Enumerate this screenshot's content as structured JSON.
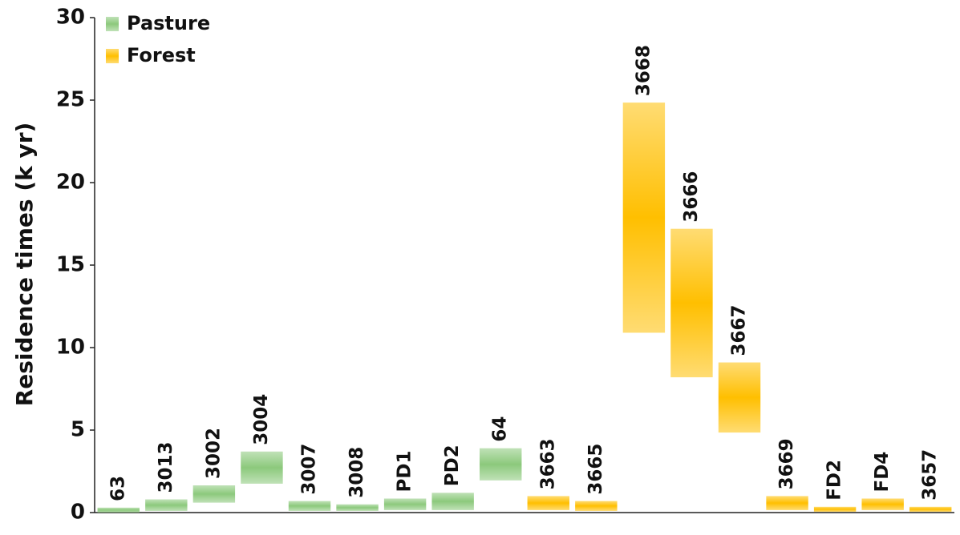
{
  "chart_data": {
    "type": "range-bar",
    "y_label": "Residence times (k yr)",
    "categories": [
      "63",
      "3013",
      "3002",
      "3004",
      "3007",
      "3008",
      "PD1",
      "PD2",
      "64",
      "3663",
      "3665",
      "3668",
      "3666",
      "3667",
      "3669",
      "FD2",
      "FD4",
      "3657"
    ],
    "series": [
      {
        "name": "Pasture",
        "color": "#8cc97c",
        "values": [
          [
            0,
            0.3
          ],
          [
            0.1,
            0.8
          ],
          [
            0.6,
            1.65
          ],
          [
            1.75,
            3.7
          ],
          [
            0.1,
            0.7
          ],
          [
            0.1,
            0.5
          ],
          [
            0.15,
            0.85
          ],
          [
            0.15,
            1.2
          ],
          [
            1.95,
            3.9
          ],
          null,
          null,
          null,
          null,
          null,
          null,
          null,
          null,
          null
        ]
      },
      {
        "name": "Forest",
        "color": "#ffbf00",
        "values": [
          null,
          null,
          null,
          null,
          null,
          null,
          null,
          null,
          null,
          [
            0.15,
            1.0
          ],
          [
            0.1,
            0.7
          ],
          [
            10.9,
            24.85
          ],
          [
            8.2,
            17.2
          ],
          [
            4.85,
            9.1
          ],
          [
            0.15,
            1.0
          ],
          [
            0.05,
            0.35
          ],
          [
            0.15,
            0.85
          ],
          [
            0.05,
            0.35
          ]
        ]
      }
    ],
    "ylim": [
      0,
      30
    ],
    "yticks": [
      0,
      5,
      10,
      15,
      20,
      25,
      30
    ],
    "legend": "upper left"
  }
}
